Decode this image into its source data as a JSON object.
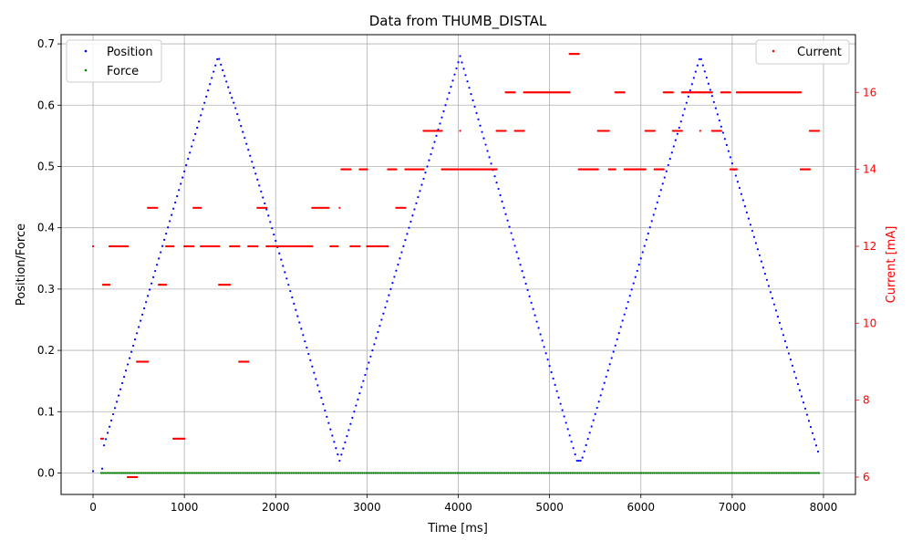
{
  "chart_data": {
    "type": "scatter",
    "title": "Data from THUMB_DISTAL",
    "xlabel": "Time [ms]",
    "ylabel_left": "Position/Force",
    "ylabel_right": "Current [mA]",
    "xlim": [
      -350,
      8350
    ],
    "ylim_left": [
      -0.035,
      0.715
    ],
    "ylim_right": [
      5.55,
      17.5
    ],
    "x_ticks": [
      0,
      1000,
      2000,
      3000,
      4000,
      5000,
      6000,
      7000,
      8000
    ],
    "y_left_ticks": [
      0.0,
      0.1,
      0.2,
      0.3,
      0.4,
      0.5,
      0.6,
      0.7
    ],
    "y_right_ticks": [
      6,
      8,
      10,
      12,
      14,
      16
    ],
    "grid": true,
    "legends": [
      {
        "placement": "top-left",
        "entries": [
          {
            "name": "Position",
            "color": "#0000ff"
          },
          {
            "name": "Force",
            "color": "#008000"
          }
        ]
      },
      {
        "placement": "top-right",
        "entries": [
          {
            "name": "Current",
            "color": "#ff0000"
          }
        ]
      }
    ],
    "series": [
      {
        "name": "Position",
        "axis": "left",
        "color": "#0000ff",
        "sampling_ms": 20,
        "points": [
          [
            0,
            0.003
          ],
          [
            100,
            0.007
          ],
          [
            110,
            0.04
          ],
          [
            1370,
            0.68
          ],
          [
            1500,
            0.62
          ],
          [
            1550,
            0.6
          ],
          [
            1900,
            0.43
          ],
          [
            2700,
            0.02
          ],
          [
            4020,
            0.68
          ],
          [
            5300,
            0.02
          ],
          [
            5350,
            0.02
          ],
          [
            6650,
            0.68
          ],
          [
            7950,
            0.03
          ]
        ]
      },
      {
        "name": "Force",
        "axis": "left",
        "color": "#008000",
        "sampling_ms": 20,
        "points": [
          [
            90,
            0.0
          ],
          [
            7950,
            0.0
          ]
        ]
      },
      {
        "name": "Current",
        "axis": "right",
        "color": "#ff0000",
        "sampling_ms": 10,
        "segments": [
          [
            0,
            0,
            12
          ],
          [
            90,
            110,
            7
          ],
          [
            110,
            180,
            11
          ],
          [
            180,
            380,
            12
          ],
          [
            380,
            480,
            6
          ],
          [
            480,
            600,
            9
          ],
          [
            600,
            700,
            13
          ],
          [
            720,
            800,
            11
          ],
          [
            800,
            880,
            12
          ],
          [
            880,
            1000,
            7
          ],
          [
            1000,
            1100,
            12
          ],
          [
            1100,
            1180,
            13
          ],
          [
            1180,
            1380,
            12
          ],
          [
            1380,
            1500,
            11
          ],
          [
            1500,
            1600,
            12
          ],
          [
            1600,
            1700,
            9
          ],
          [
            1700,
            1800,
            12
          ],
          [
            1800,
            1900,
            13
          ],
          [
            1900,
            2400,
            12
          ],
          [
            2400,
            2580,
            13
          ],
          [
            2600,
            2680,
            12
          ],
          [
            2700,
            2700,
            13
          ],
          [
            2720,
            2820,
            14
          ],
          [
            2820,
            2920,
            12
          ],
          [
            2920,
            3000,
            14
          ],
          [
            3000,
            3230,
            12
          ],
          [
            3230,
            3320,
            14
          ],
          [
            3320,
            3420,
            13
          ],
          [
            3420,
            3620,
            14
          ],
          [
            3620,
            3820,
            15
          ],
          [
            3820,
            4000,
            14
          ],
          [
            4020,
            4020,
            15
          ],
          [
            4020,
            4420,
            14
          ],
          [
            4420,
            4520,
            15
          ],
          [
            4520,
            4620,
            16
          ],
          [
            4620,
            4720,
            15
          ],
          [
            4720,
            5220,
            16
          ],
          [
            5220,
            5320,
            17
          ],
          [
            5320,
            5530,
            14
          ],
          [
            5530,
            5650,
            15
          ],
          [
            5650,
            5720,
            14
          ],
          [
            5720,
            5820,
            16
          ],
          [
            5820,
            6050,
            14
          ],
          [
            6050,
            6150,
            15
          ],
          [
            6150,
            6250,
            14
          ],
          [
            6250,
            6350,
            16
          ],
          [
            6350,
            6450,
            15
          ],
          [
            6450,
            6650,
            16
          ],
          [
            6650,
            6650,
            15
          ],
          [
            6650,
            6780,
            16
          ],
          [
            6780,
            6880,
            15
          ],
          [
            6880,
            6980,
            16
          ],
          [
            6980,
            7050,
            14
          ],
          [
            7050,
            7750,
            16
          ],
          [
            7750,
            7850,
            14
          ],
          [
            7850,
            7950,
            15
          ]
        ]
      }
    ]
  }
}
